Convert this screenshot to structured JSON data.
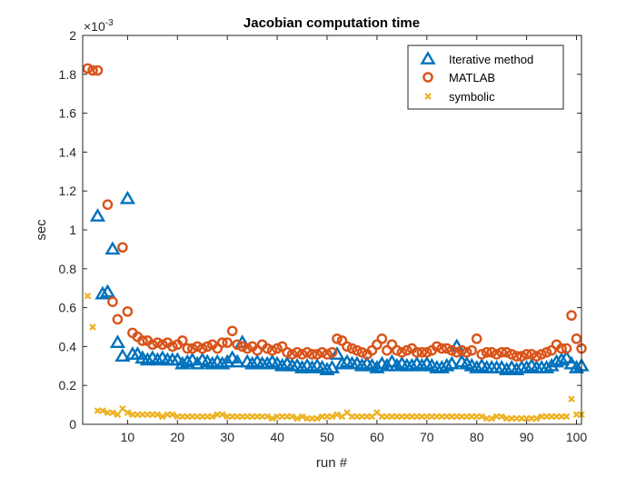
{
  "chart_data": {
    "type": "scatter",
    "title": "Jacobian computation time",
    "xlabel": "run #",
    "ylabel": "sec",
    "y_exponent_label": "×10",
    "y_exponent_power": "-3",
    "xlim": [
      1,
      101
    ],
    "ylim": [
      0,
      2
    ],
    "xticks": [
      10,
      20,
      30,
      40,
      50,
      60,
      70,
      80,
      90,
      100
    ],
    "yticks": [
      0,
      0.2,
      0.4,
      0.6,
      0.8,
      1,
      1.2,
      1.4,
      1.6,
      1.8,
      2
    ],
    "ytick_labels": [
      "0",
      "0.2",
      "0.4",
      "0.6",
      "0.8",
      "1",
      "1.2",
      "1.4",
      "1.6",
      "1.8",
      "2"
    ],
    "xtick_labels": [
      "10",
      "20",
      "30",
      "40",
      "50",
      "60",
      "70",
      "80",
      "90",
      "100"
    ],
    "legend_position": "top-right",
    "series": [
      {
        "name": "Iterative method",
        "marker": "triangle",
        "color": "#0072BD",
        "x": [
          4,
          5,
          6,
          7,
          8,
          9,
          10,
          11,
          12,
          13,
          14,
          15,
          16,
          17,
          18,
          19,
          20,
          21,
          22,
          23,
          24,
          25,
          26,
          27,
          28,
          29,
          30,
          31,
          32,
          33,
          34,
          35,
          36,
          37,
          38,
          39,
          40,
          41,
          42,
          43,
          44,
          45,
          46,
          47,
          48,
          49,
          50,
          51,
          52,
          53,
          54,
          55,
          56,
          57,
          58,
          59,
          60,
          61,
          62,
          63,
          64,
          65,
          66,
          67,
          68,
          69,
          70,
          71,
          72,
          73,
          74,
          75,
          76,
          77,
          78,
          79,
          80,
          81,
          82,
          83,
          84,
          85,
          86,
          87,
          88,
          89,
          90,
          91,
          92,
          93,
          94,
          95,
          96,
          97,
          98,
          99,
          100,
          101
        ],
        "y": [
          1.07,
          0.67,
          0.68,
          0.9,
          0.42,
          0.35,
          1.16,
          0.36,
          0.36,
          0.34,
          0.33,
          0.34,
          0.33,
          0.34,
          0.33,
          0.33,
          0.33,
          0.31,
          0.32,
          0.33,
          0.31,
          0.33,
          0.32,
          0.31,
          0.32,
          0.31,
          0.32,
          0.34,
          0.32,
          0.42,
          0.32,
          0.31,
          0.32,
          0.31,
          0.31,
          0.32,
          0.31,
          0.3,
          0.31,
          0.3,
          0.3,
          0.29,
          0.3,
          0.29,
          0.3,
          0.29,
          0.28,
          0.29,
          0.36,
          0.31,
          0.32,
          0.31,
          0.31,
          0.3,
          0.31,
          0.3,
          0.29,
          0.31,
          0.3,
          0.32,
          0.3,
          0.31,
          0.3,
          0.3,
          0.31,
          0.3,
          0.31,
          0.3,
          0.29,
          0.29,
          0.3,
          0.31,
          0.4,
          0.32,
          0.31,
          0.3,
          0.29,
          0.3,
          0.29,
          0.29,
          0.29,
          0.29,
          0.28,
          0.29,
          0.28,
          0.29,
          0.29,
          0.3,
          0.29,
          0.29,
          0.29,
          0.3,
          0.32,
          0.33,
          0.34,
          0.31,
          0.29,
          0.3
        ]
      },
      {
        "name": "MATLAB",
        "marker": "circle",
        "color": "#D95319",
        "x": [
          2,
          3,
          4,
          6,
          7,
          8,
          9,
          10,
          11,
          12,
          13,
          14,
          15,
          16,
          17,
          18,
          19,
          20,
          21,
          22,
          23,
          24,
          25,
          26,
          27,
          28,
          29,
          30,
          31,
          32,
          33,
          34,
          35,
          36,
          37,
          38,
          39,
          40,
          41,
          42,
          43,
          44,
          45,
          46,
          47,
          48,
          49,
          50,
          51,
          52,
          53,
          54,
          55,
          56,
          57,
          58,
          59,
          60,
          61,
          62,
          63,
          64,
          65,
          66,
          67,
          68,
          69,
          70,
          71,
          72,
          73,
          74,
          75,
          76,
          77,
          78,
          79,
          80,
          81,
          82,
          83,
          84,
          85,
          86,
          87,
          88,
          89,
          90,
          91,
          92,
          93,
          94,
          95,
          96,
          97,
          98,
          99,
          100,
          101
        ],
        "y": [
          1.83,
          1.82,
          1.82,
          1.13,
          0.63,
          0.54,
          0.91,
          0.58,
          0.47,
          0.45,
          0.43,
          0.43,
          0.41,
          0.42,
          0.41,
          0.42,
          0.4,
          0.41,
          0.43,
          0.39,
          0.39,
          0.4,
          0.39,
          0.4,
          0.41,
          0.39,
          0.42,
          0.42,
          0.48,
          0.41,
          0.4,
          0.39,
          0.4,
          0.38,
          0.41,
          0.39,
          0.38,
          0.39,
          0.4,
          0.37,
          0.36,
          0.37,
          0.36,
          0.37,
          0.36,
          0.36,
          0.37,
          0.36,
          0.37,
          0.44,
          0.43,
          0.4,
          0.39,
          0.38,
          0.37,
          0.36,
          0.38,
          0.41,
          0.44,
          0.38,
          0.41,
          0.38,
          0.37,
          0.38,
          0.39,
          0.37,
          0.37,
          0.37,
          0.38,
          0.4,
          0.39,
          0.39,
          0.38,
          0.37,
          0.38,
          0.37,
          0.38,
          0.44,
          0.36,
          0.37,
          0.37,
          0.36,
          0.37,
          0.37,
          0.36,
          0.35,
          0.35,
          0.36,
          0.36,
          0.35,
          0.36,
          0.37,
          0.38,
          0.41,
          0.39,
          0.39,
          0.56,
          0.44,
          0.39
        ]
      },
      {
        "name": "symbolic",
        "marker": "x",
        "color": "#EDB120",
        "x": [
          2,
          3,
          4,
          5,
          6,
          7,
          8,
          9,
          10,
          11,
          12,
          13,
          14,
          15,
          16,
          17,
          18,
          19,
          20,
          21,
          22,
          23,
          24,
          25,
          26,
          27,
          28,
          29,
          30,
          31,
          32,
          33,
          34,
          35,
          36,
          37,
          38,
          39,
          40,
          41,
          42,
          43,
          44,
          45,
          46,
          47,
          48,
          49,
          50,
          51,
          52,
          53,
          54,
          55,
          56,
          57,
          58,
          59,
          60,
          61,
          62,
          63,
          64,
          65,
          66,
          67,
          68,
          69,
          70,
          71,
          72,
          73,
          74,
          75,
          76,
          77,
          78,
          79,
          80,
          81,
          82,
          83,
          84,
          85,
          86,
          87,
          88,
          89,
          90,
          91,
          92,
          93,
          94,
          95,
          96,
          97,
          98,
          99,
          100,
          101
        ],
        "y": [
          0.66,
          0.5,
          0.07,
          0.07,
          0.06,
          0.06,
          0.05,
          0.08,
          0.06,
          0.05,
          0.05,
          0.05,
          0.05,
          0.05,
          0.05,
          0.04,
          0.05,
          0.05,
          0.04,
          0.04,
          0.04,
          0.04,
          0.04,
          0.04,
          0.04,
          0.04,
          0.05,
          0.05,
          0.04,
          0.04,
          0.04,
          0.04,
          0.04,
          0.04,
          0.04,
          0.04,
          0.04,
          0.03,
          0.04,
          0.04,
          0.04,
          0.04,
          0.03,
          0.04,
          0.03,
          0.03,
          0.03,
          0.04,
          0.04,
          0.04,
          0.05,
          0.04,
          0.06,
          0.04,
          0.04,
          0.04,
          0.04,
          0.04,
          0.06,
          0.04,
          0.04,
          0.04,
          0.04,
          0.04,
          0.04,
          0.04,
          0.04,
          0.04,
          0.04,
          0.04,
          0.04,
          0.04,
          0.04,
          0.04,
          0.04,
          0.04,
          0.04,
          0.04,
          0.04,
          0.04,
          0.03,
          0.03,
          0.04,
          0.04,
          0.03,
          0.03,
          0.03,
          0.03,
          0.03,
          0.03,
          0.03,
          0.04,
          0.04,
          0.04,
          0.04,
          0.04,
          0.04,
          0.13,
          0.05,
          0.05
        ]
      }
    ]
  }
}
